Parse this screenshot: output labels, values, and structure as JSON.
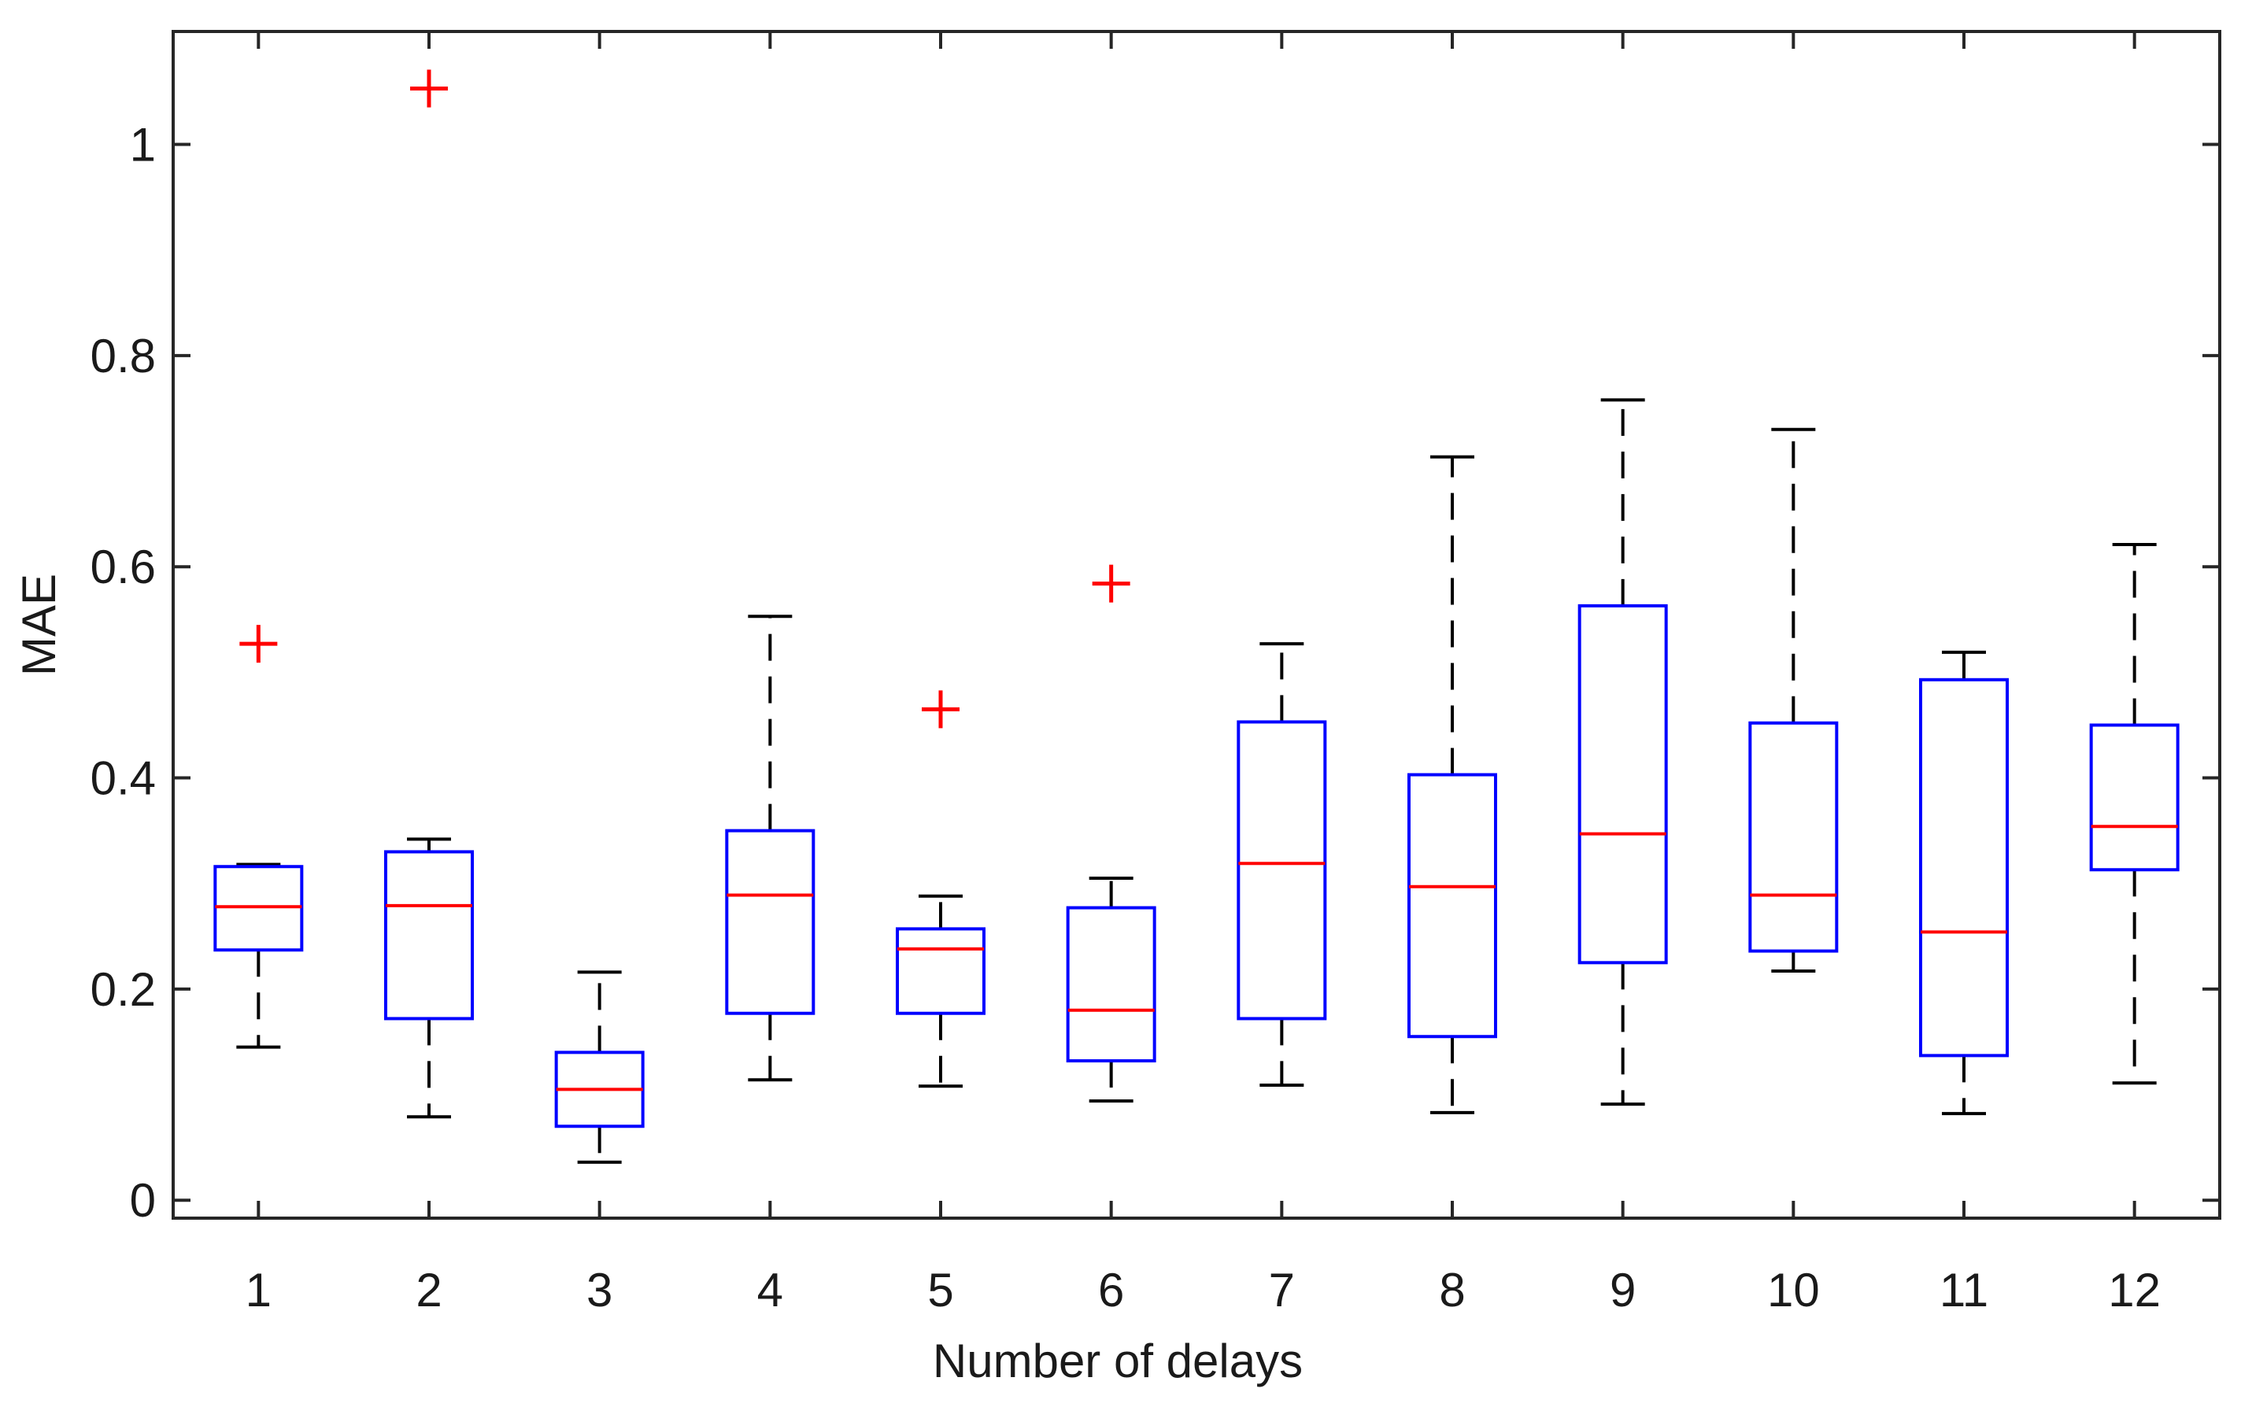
{
  "chart_data": {
    "type": "boxplot",
    "title": "",
    "xlabel": "Number of delays",
    "ylabel": "MAE",
    "ylim": [
      -0.017,
      1.107
    ],
    "yticks": [
      0,
      0.2,
      0.4,
      0.6,
      0.8,
      1
    ],
    "ytick_labels": [
      "0",
      "0.2",
      "0.4",
      "0.6",
      "0.8",
      "1"
    ],
    "grid": false,
    "colors": {
      "box": "#0000ff",
      "median": "#ff0000",
      "whisker": "#000000",
      "outlier": "#ff0000",
      "axis": "#262626"
    },
    "boxes": [
      {
        "label": "1",
        "min": 0.145,
        "q1": 0.237,
        "median": 0.278,
        "q3": 0.316,
        "max": 0.318,
        "outliers": [
          0.527
        ]
      },
      {
        "label": "2",
        "min": 0.079,
        "q1": 0.172,
        "median": 0.279,
        "q3": 0.33,
        "max": 0.342,
        "outliers": [
          1.053
        ]
      },
      {
        "label": "3",
        "min": 0.036,
        "q1": 0.07,
        "median": 0.105,
        "q3": 0.14,
        "max": 0.216,
        "outliers": []
      },
      {
        "label": "4",
        "min": 0.114,
        "q1": 0.177,
        "median": 0.289,
        "q3": 0.35,
        "max": 0.553,
        "outliers": []
      },
      {
        "label": "5",
        "min": 0.108,
        "q1": 0.177,
        "median": 0.238,
        "q3": 0.257,
        "max": 0.288,
        "outliers": [
          0.465
        ]
      },
      {
        "label": "6",
        "min": 0.094,
        "q1": 0.132,
        "median": 0.18,
        "q3": 0.277,
        "max": 0.305,
        "outliers": [
          0.584
        ]
      },
      {
        "label": "7",
        "min": 0.109,
        "q1": 0.172,
        "median": 0.319,
        "q3": 0.453,
        "max": 0.527,
        "outliers": []
      },
      {
        "label": "8",
        "min": 0.083,
        "q1": 0.155,
        "median": 0.297,
        "q3": 0.403,
        "max": 0.704,
        "outliers": []
      },
      {
        "label": "9",
        "min": 0.091,
        "q1": 0.225,
        "median": 0.347,
        "q3": 0.563,
        "max": 0.758,
        "outliers": []
      },
      {
        "label": "10",
        "min": 0.217,
        "q1": 0.236,
        "median": 0.289,
        "q3": 0.452,
        "max": 0.73,
        "outliers": []
      },
      {
        "label": "11",
        "min": 0.082,
        "q1": 0.137,
        "median": 0.254,
        "q3": 0.493,
        "max": 0.519,
        "outliers": []
      },
      {
        "label": "12",
        "min": 0.111,
        "q1": 0.313,
        "median": 0.354,
        "q3": 0.45,
        "max": 0.621,
        "outliers": []
      }
    ]
  }
}
